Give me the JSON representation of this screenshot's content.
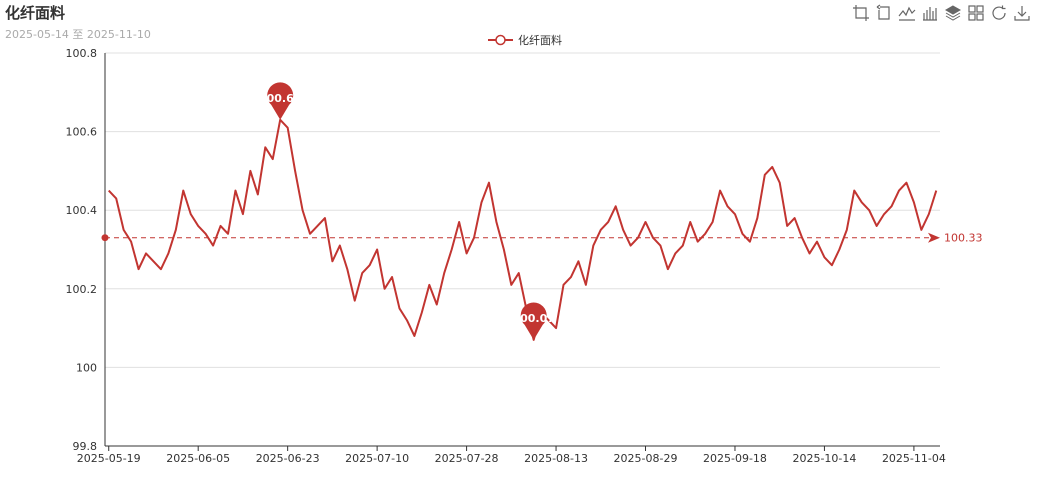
{
  "header": {
    "title": "化纤面料",
    "subtitle": "2025-05-14 至 2025-11-10"
  },
  "toolbox": [
    {
      "name": "zoom-icon"
    },
    {
      "name": "zoom-reset-icon"
    },
    {
      "name": "line-chart-icon"
    },
    {
      "name": "bar-chart-icon"
    },
    {
      "name": "stack-icon"
    },
    {
      "name": "tiled-icon"
    },
    {
      "name": "restore-icon"
    },
    {
      "name": "save-image-icon"
    }
  ],
  "chart_data": {
    "type": "line",
    "color": "#c23531",
    "legend": "化纤面料",
    "legend_position": "top-center",
    "ylim": [
      99.8,
      100.8
    ],
    "yticks": [
      "99.8",
      "100",
      "100.2",
      "100.4",
      "100.6",
      "100.8"
    ],
    "xtick_labels": [
      "2025-05-19",
      "2025-06-05",
      "2025-06-23",
      "2025-07-10",
      "2025-07-28",
      "2025-08-13",
      "2025-08-29",
      "2025-09-18",
      "2025-10-14",
      "2025-11-04"
    ],
    "xtick_index": [
      0,
      12,
      24,
      36,
      48,
      60,
      72,
      84,
      96,
      108
    ],
    "grid_y": true,
    "series": [
      {
        "name": "化纤面料",
        "values": [
          100.45,
          100.43,
          100.35,
          100.32,
          100.25,
          100.29,
          100.27,
          100.25,
          100.29,
          100.35,
          100.45,
          100.39,
          100.36,
          100.34,
          100.31,
          100.36,
          100.34,
          100.45,
          100.39,
          100.5,
          100.44,
          100.56,
          100.53,
          100.63,
          100.61,
          100.5,
          100.4,
          100.34,
          100.36,
          100.38,
          100.27,
          100.31,
          100.25,
          100.17,
          100.24,
          100.26,
          100.3,
          100.2,
          100.23,
          100.15,
          100.12,
          100.08,
          100.14,
          100.21,
          100.16,
          100.24,
          100.3,
          100.37,
          100.29,
          100.33,
          100.42,
          100.47,
          100.37,
          100.3,
          100.21,
          100.24,
          100.15,
          100.07,
          100.14,
          100.12,
          100.1,
          100.21,
          100.23,
          100.27,
          100.21,
          100.31,
          100.35,
          100.37,
          100.41,
          100.35,
          100.31,
          100.33,
          100.37,
          100.33,
          100.31,
          100.25,
          100.29,
          100.31,
          100.37,
          100.32,
          100.34,
          100.37,
          100.45,
          100.41,
          100.39,
          100.34,
          100.32,
          100.38,
          100.49,
          100.51,
          100.47,
          100.36,
          100.38,
          100.33,
          100.29,
          100.32,
          100.28,
          100.26,
          100.3,
          100.35,
          100.45,
          100.42,
          100.4,
          100.36,
          100.39,
          100.41,
          100.45,
          100.47,
          100.42,
          100.35,
          100.39,
          100.45
        ]
      }
    ],
    "mark_points": [
      {
        "label": "100.63",
        "index": 23,
        "value": 100.63
      },
      {
        "label": "100.07",
        "index": 57,
        "value": 100.07
      }
    ],
    "mark_line": {
      "label": "100.33",
      "value": 100.33
    }
  }
}
